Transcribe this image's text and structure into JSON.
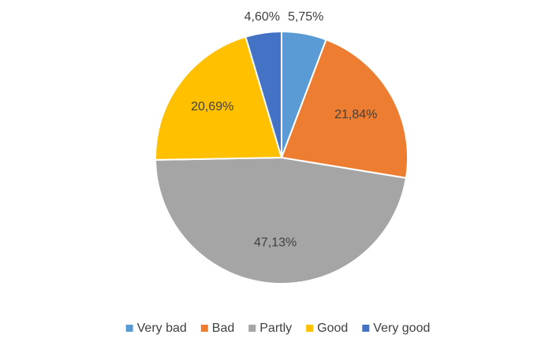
{
  "chart_data": {
    "type": "pie",
    "categories": [
      "Very bad",
      "Bad",
      "Partly",
      "Good",
      "Very good"
    ],
    "values": [
      5.75,
      21.84,
      47.13,
      20.69,
      4.6
    ],
    "value_labels": [
      "5,75%",
      "21,84%",
      "47,13%",
      "20,69%",
      "4,60%"
    ],
    "colors": [
      "#5b9bd5",
      "#ed7d31",
      "#a5a5a5",
      "#ffc000",
      "#4472c4"
    ],
    "legend": "bottom"
  }
}
